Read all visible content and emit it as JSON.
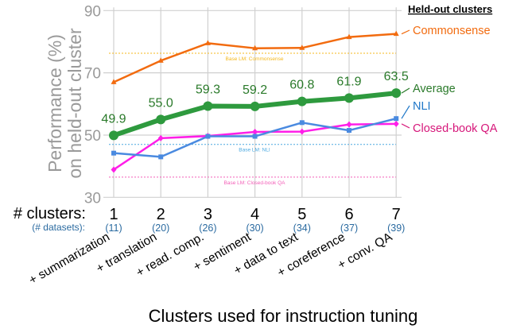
{
  "chart_data": {
    "type": "line",
    "xlabel": "Clusters used for instruction tuning",
    "ylabel_lines": [
      "Performance (%)",
      "on held-out cluster"
    ],
    "ylim": [
      30,
      90
    ],
    "yticks": [
      30,
      50,
      70,
      90
    ],
    "grid": true,
    "x_row_label": "# clusters:",
    "datasets_row_label": "(# datasets):",
    "categories": [
      "1",
      "2",
      "3",
      "4",
      "5",
      "6",
      "7"
    ],
    "datasets": [
      "(11)",
      "(20)",
      "(26)",
      "(30)",
      "(34)",
      "(37)",
      "(39)"
    ],
    "cluster_added": [
      "+ summarization",
      "+ translation",
      "+ read. comp.",
      "+ sentiment",
      "+ data to text",
      "+ coreference",
      "+ conv. QA"
    ],
    "legend_title": "Held-out clusters",
    "legend_placement": "right",
    "series": [
      {
        "name": "Commonsense",
        "color": "#f26b0f",
        "marker": "triangle",
        "values": [
          67.0,
          73.9,
          79.5,
          77.9,
          78.0,
          81.5,
          82.5
        ]
      },
      {
        "name": "Average",
        "color": "#2e9a3e",
        "marker": "circle",
        "values": [
          49.9,
          55.0,
          59.3,
          59.2,
          60.8,
          61.9,
          63.5
        ],
        "data_labels": [
          "49.9",
          "55.0",
          "59.3",
          "59.2",
          "60.8",
          "61.9",
          "63.5"
        ]
      },
      {
        "name": "NLI",
        "color": "#4a8ae0",
        "marker": "square",
        "values": [
          44.2,
          43.0,
          49.6,
          49.6,
          54.0,
          51.5,
          55.3
        ]
      },
      {
        "name": "Closed-book QA",
        "color": "#ff1ee8",
        "marker": "diamond",
        "values": [
          38.9,
          49.0,
          49.7,
          51.0,
          51.1,
          53.4,
          53.6
        ]
      }
    ],
    "baselines": [
      {
        "label": "Base LM: Commonsense",
        "value": 76.3,
        "color": "#f4b81c"
      },
      {
        "label": "Base LM: NLI",
        "value": 47.0,
        "color": "#4aa8e0"
      },
      {
        "label": "Base LM: Closed-book QA",
        "value": 36.5,
        "color": "#f35fb8"
      }
    ],
    "legend_colors": {
      "Commonsense": "#f26b0f",
      "Average": "#2a7a2a",
      "NLI": "#1f77c8",
      "Closed-book QA": "#d6177a"
    }
  }
}
